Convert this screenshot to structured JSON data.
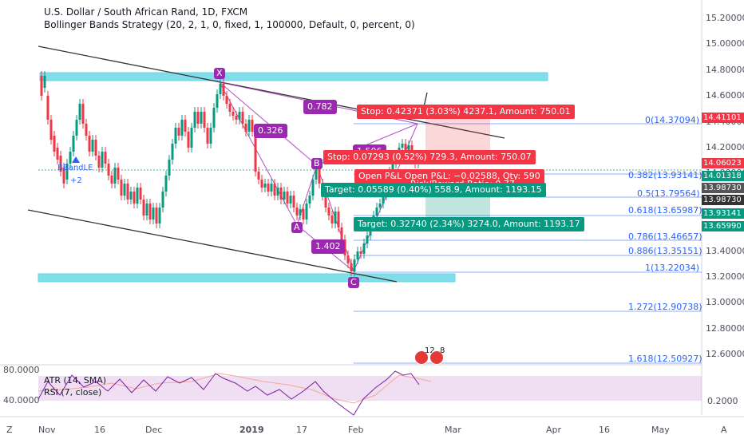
{
  "header": {
    "title": "U.S. Dollar / South African Rand, 1D, FXCM",
    "strategy": "Bollinger Bands Strategy (20, 2, 1, 0, fixed, 1, 100000, Default, 0, percent, 0)"
  },
  "price_axis": [
    "15.20000",
    "15.00000",
    "14.80000",
    "14.60000",
    "14.40000",
    "14.20000",
    "14.00000",
    "13.80000",
    "13.60000",
    "13.40000",
    "13.20000",
    "13.00000",
    "12.80000",
    "12.60000"
  ],
  "price_tags": {
    "t1": "14.41101",
    "t2": "14.06023",
    "t3": "14.01318",
    "t4": "13.98730",
    "t5": "13.93141",
    "t6": "13.65990"
  },
  "time_axis": [
    "Nov",
    "16",
    "Dec",
    "2019",
    "17",
    "Feb",
    "Mar",
    "Apr",
    "16",
    "May"
  ],
  "fib_levels": [
    "0(14.37094)",
    "0.382(13.93141)",
    "0.5(13.79564)",
    "0.618(13.65987)",
    "0.786(13.46657)",
    "0.886(13.35151)",
    "1(13.22034)",
    "1.272(12.90738)",
    "1.618(12.50927)"
  ],
  "pattern_points": {
    "x": "X",
    "a": "A",
    "b": "B",
    "c": "C"
  },
  "ratios": {
    "r1": "0.782",
    "r2": "0.326",
    "r3": "1.506",
    "r4": "1.402"
  },
  "trade_tags": {
    "stop1": "Stop: 0.42371 (3.03%) 4237.1, Amount: 750.01",
    "stop2": "Stop: 0.07293 (0.52%) 729.3, Amount: 750.07",
    "openpl": "Open P&L   Open P&L: −0.02588, Qty: 590",
    "rr": "Risk/Reward Ratio: 0.77",
    "target1": "Target: 0.05589 (0.40%) 558.9, Amount: 1193.15",
    "target2": "Target: 0.32740 (2.34%) 3274.0, Amount: 1193.17"
  },
  "strategy_marker": {
    "label": "BBandLE",
    "sub": "+2"
  },
  "events": {
    "count1": "12",
    "count2": "8"
  },
  "indicator": {
    "atr": "ATR (14, SMA)",
    "rsi": "RSI (7, close)",
    "left_top": "80.0000",
    "left_bottom": "40.0000",
    "right_val": "0.2000"
  },
  "corner": {
    "left": "Z",
    "right": "A"
  },
  "colors": {
    "up": "#089981",
    "down": "#f23645",
    "fib": "#2962ff",
    "pattern": "#9c27b0",
    "zone": "#4dd0e1"
  }
}
